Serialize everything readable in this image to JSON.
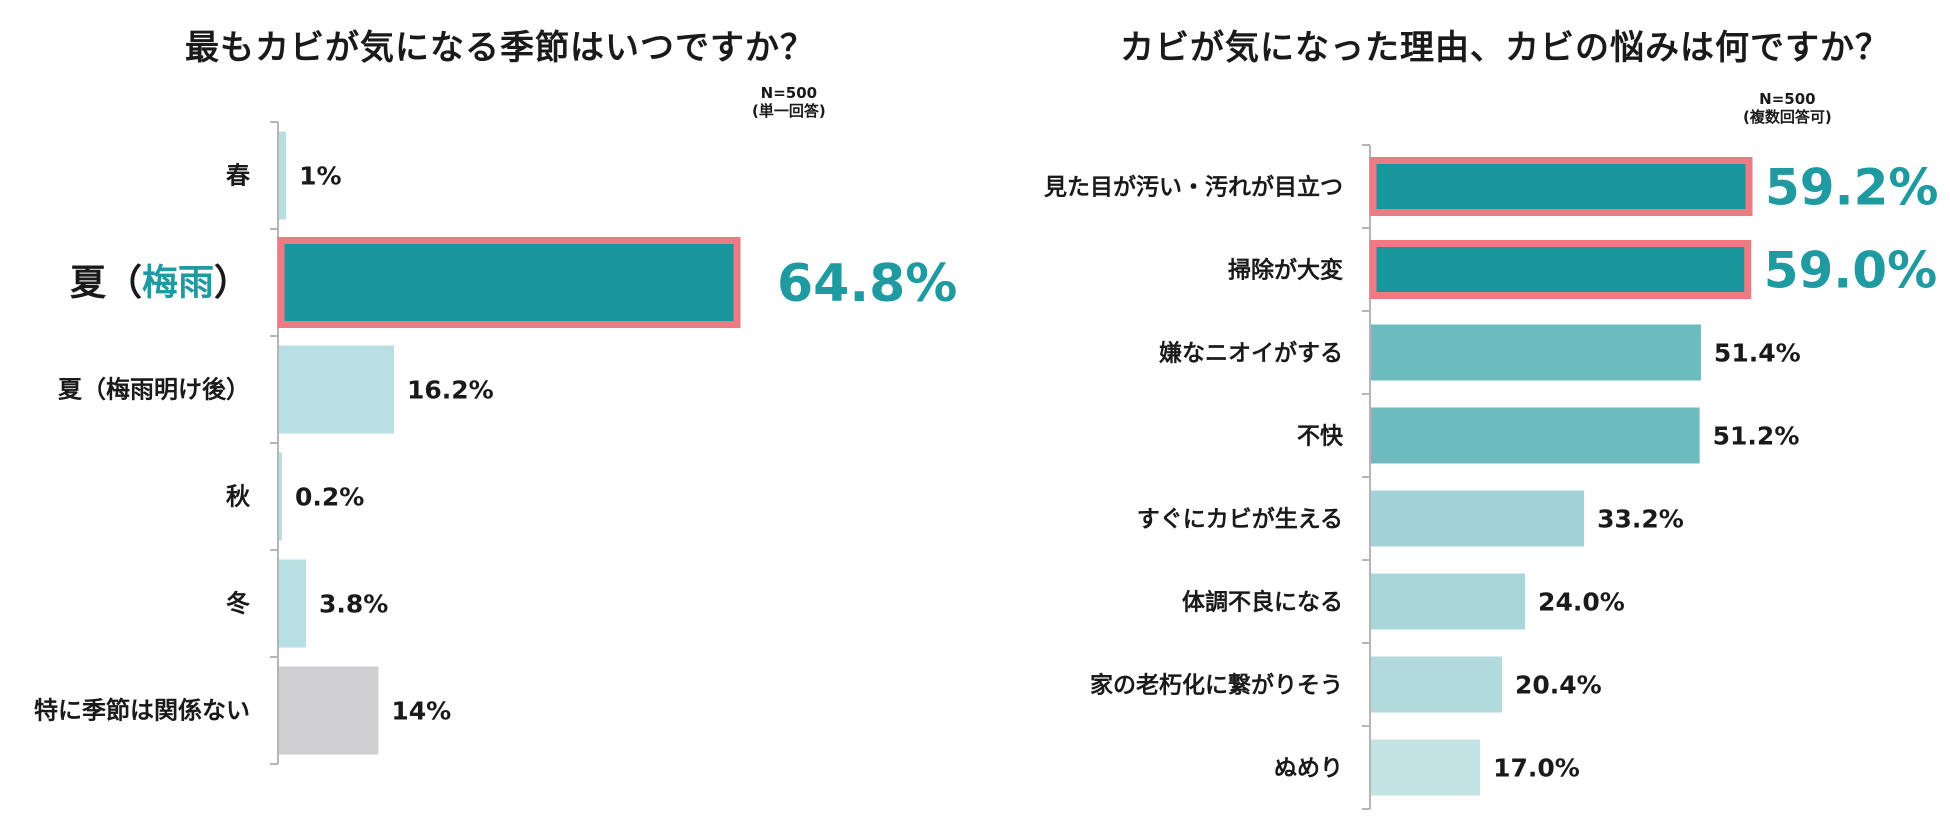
{
  "chart_data": [
    {
      "type": "bar",
      "orientation": "horizontal",
      "title": "最もカビが気になる季節はいつですか？",
      "note": [
        "N=500",
        "(単一回答)"
      ],
      "categories": [
        "春",
        "夏（梅雨）",
        "夏（梅雨明け後）",
        "秋",
        "冬",
        "特に季節は関係ない"
      ],
      "label_parts": [
        [
          {
            "text": "春",
            "color": "#1a1a1a"
          }
        ],
        [
          {
            "text": "夏（",
            "color": "#1a1a1a"
          },
          {
            "text": "梅雨",
            "color": "#1e9aa0"
          },
          {
            "text": "）",
            "color": "#1a1a1a"
          }
        ],
        [
          {
            "text": "夏（梅雨明け後）",
            "color": "#1a1a1a"
          }
        ],
        [
          {
            "text": "秋",
            "color": "#1a1a1a"
          }
        ],
        [
          {
            "text": "冬",
            "color": "#1a1a1a"
          }
        ],
        [
          {
            "text": "特に季節は関係ない",
            "color": "#1a1a1a"
          }
        ]
      ],
      "values": [
        1,
        64.8,
        16.2,
        0.2,
        3.8,
        14
      ],
      "value_labels": [
        "1%",
        "64.8%",
        "16.2%",
        "0.2%",
        "3.8%",
        "14%"
      ],
      "bar_colors": [
        "#b8dfe2",
        "#1a979c",
        "#b8dfe2",
        "#b8dfe2",
        "#b8dfe2",
        "#cfcfd1"
      ],
      "highlight": [
        false,
        true,
        false,
        false,
        false,
        false
      ],
      "highlight_color": "#ee7b83",
      "value_highlight_color": "#1e9aa0",
      "xlim": [
        0,
        64.8
      ]
    },
    {
      "type": "bar",
      "orientation": "horizontal",
      "title": "カビが気になった理由、カビの悩みは何ですか？",
      "note": [
        "N=500",
        "(複数回答可)"
      ],
      "categories": [
        "見た目が汚い・汚れが目立つ",
        "掃除が大変",
        "嫌なニオイがする",
        "不快",
        "すぐにカビが生える",
        "体調不良になる",
        "家の老朽化に繋がりそう",
        "ぬめり"
      ],
      "values": [
        59.2,
        59.0,
        51.4,
        51.2,
        33.2,
        24.0,
        20.4,
        17.0
      ],
      "value_labels": [
        "59.2%",
        "59.0%",
        "51.4%",
        "51.2%",
        "33.2%",
        "24.0%",
        "20.4%",
        "17.0%"
      ],
      "bar_colors": [
        "#1a979c",
        "#1a979c",
        "#6cbcbf",
        "#6cbcbf",
        "#a3d3d6",
        "#a9d6d9",
        "#b1dadd",
        "#c3e3e5"
      ],
      "highlight": [
        true,
        true,
        false,
        false,
        false,
        false,
        false,
        false
      ],
      "highlight_color": "#ee7b83",
      "value_highlight_color": "#1e9aa0",
      "xlim": [
        0,
        59.2
      ]
    }
  ]
}
